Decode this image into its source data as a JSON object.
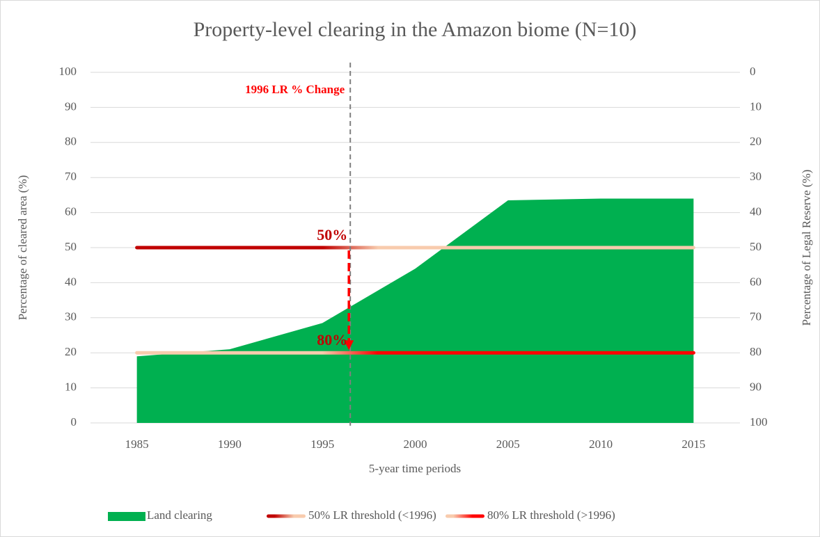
{
  "chart_data": {
    "type": "area",
    "title": "Property-level clearing in the Amazon biome (N=10)",
    "xlabel": "5-year time periods",
    "ylabel": "Percentage of cleared area (%)",
    "y2label": "Percentage of Legal Reserve (%)",
    "x": [
      1985,
      1990,
      1995,
      2000,
      2005,
      2010,
      2015
    ],
    "xlim": [
      1982.5,
      2017.5
    ],
    "xticks": [
      1985,
      1990,
      1995,
      2000,
      2005,
      2010,
      2015
    ],
    "ylim": [
      0,
      100
    ],
    "yticks": [
      0,
      10,
      20,
      30,
      40,
      50,
      60,
      70,
      80,
      90,
      100
    ],
    "y2lim": [
      100,
      0
    ],
    "y2ticks": [
      0,
      10,
      20,
      30,
      40,
      50,
      60,
      70,
      80,
      90,
      100
    ],
    "grid": true,
    "legend": "bottom",
    "series": [
      {
        "name": "Land clearing",
        "type": "area",
        "color": "#00b050",
        "values": [
          19,
          21,
          28.5,
          44,
          63.5,
          64,
          64
        ]
      },
      {
        "name": "50% LR threshold (<1996)",
        "type": "line",
        "axis": "y2",
        "colors": [
          "#c00000",
          "#f8cbad"
        ],
        "values": [
          50,
          50,
          50,
          50,
          50,
          50,
          50
        ]
      },
      {
        "name": "80% LR threshold (>1996)",
        "type": "line",
        "axis": "y2",
        "colors": [
          "#f8cbad",
          "#ff0000"
        ],
        "values": [
          80,
          80,
          80,
          80,
          80,
          80,
          80
        ]
      }
    ],
    "annotations": [
      {
        "text": "1996 LR % Change",
        "x": 1996.5,
        "color": "#ff0000"
      },
      {
        "text": "50%",
        "x": 1996.5,
        "y": 50,
        "color": "#c00000"
      },
      {
        "text": "80%",
        "x": 1996.5,
        "y": 20,
        "color": "#c00000"
      }
    ]
  }
}
